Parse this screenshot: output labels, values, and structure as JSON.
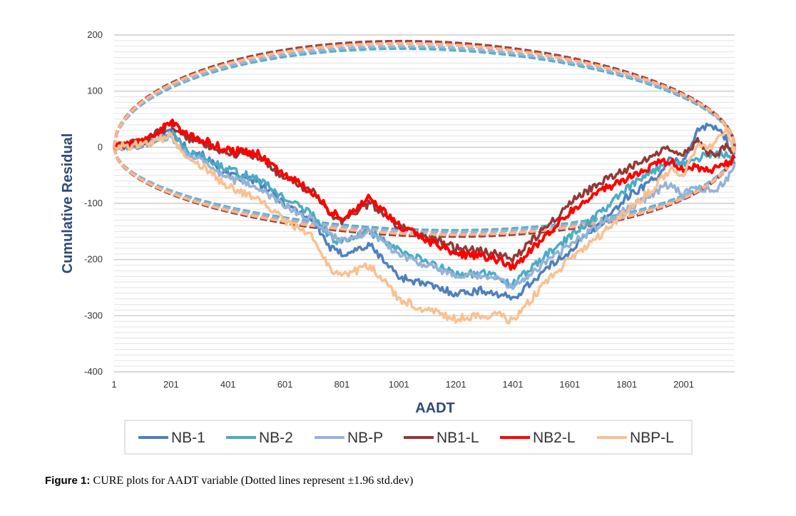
{
  "chart_data": {
    "type": "line",
    "xlabel": "AADT",
    "ylabel": "Cumulative Residual",
    "xlim": [
      1,
      2180
    ],
    "ylim": [
      -400,
      200
    ],
    "x_ticks": [
      1,
      201,
      401,
      601,
      801,
      1001,
      1201,
      1401,
      1601,
      1801,
      2001
    ],
    "y_ticks": [
      200,
      100,
      0,
      -100,
      -200,
      -300,
      -400
    ],
    "grid": true,
    "legend_position": "bottom",
    "series": [
      {
        "name": "NB-1",
        "color": "#4f7fbf",
        "points": [
          [
            1,
            0
          ],
          [
            100,
            5
          ],
          [
            200,
            30
          ],
          [
            260,
            -5
          ],
          [
            300,
            -10
          ],
          [
            400,
            -50
          ],
          [
            500,
            -60
          ],
          [
            600,
            -100
          ],
          [
            700,
            -130
          ],
          [
            760,
            -180
          ],
          [
            800,
            -190
          ],
          [
            900,
            -175
          ],
          [
            1000,
            -230
          ],
          [
            1100,
            -245
          ],
          [
            1200,
            -260
          ],
          [
            1300,
            -255
          ],
          [
            1350,
            -262
          ],
          [
            1400,
            -270
          ],
          [
            1500,
            -225
          ],
          [
            1600,
            -185
          ],
          [
            1700,
            -140
          ],
          [
            1800,
            -90
          ],
          [
            1900,
            -55
          ],
          [
            1950,
            -25
          ],
          [
            2000,
            -25
          ],
          [
            2050,
            30
          ],
          [
            2100,
            40
          ],
          [
            2150,
            15
          ],
          [
            2180,
            -20
          ]
        ]
      },
      {
        "name": "NB-2",
        "color": "#4bacc6",
        "points": [
          [
            1,
            0
          ],
          [
            100,
            5
          ],
          [
            200,
            25
          ],
          [
            260,
            -10
          ],
          [
            300,
            -15
          ],
          [
            400,
            -40
          ],
          [
            500,
            -55
          ],
          [
            600,
            -90
          ],
          [
            700,
            -120
          ],
          [
            760,
            -160
          ],
          [
            800,
            -170
          ],
          [
            900,
            -150
          ],
          [
            1000,
            -185
          ],
          [
            1100,
            -205
          ],
          [
            1200,
            -225
          ],
          [
            1300,
            -225
          ],
          [
            1350,
            -232
          ],
          [
            1400,
            -245
          ],
          [
            1500,
            -200
          ],
          [
            1600,
            -160
          ],
          [
            1700,
            -120
          ],
          [
            1800,
            -75
          ],
          [
            1900,
            -40
          ],
          [
            1950,
            -25
          ],
          [
            2000,
            -30
          ],
          [
            2050,
            -20
          ],
          [
            2100,
            -10
          ],
          [
            2150,
            -15
          ],
          [
            2180,
            -30
          ]
        ]
      },
      {
        "name": "NB-P",
        "color": "#95b3d7",
        "points": [
          [
            1,
            0
          ],
          [
            100,
            5
          ],
          [
            200,
            20
          ],
          [
            260,
            -15
          ],
          [
            300,
            -20
          ],
          [
            400,
            -55
          ],
          [
            500,
            -70
          ],
          [
            600,
            -105
          ],
          [
            700,
            -130
          ],
          [
            760,
            -155
          ],
          [
            800,
            -165
          ],
          [
            900,
            -150
          ],
          [
            1000,
            -190
          ],
          [
            1100,
            -210
          ],
          [
            1200,
            -230
          ],
          [
            1300,
            -230
          ],
          [
            1350,
            -235
          ],
          [
            1400,
            -250
          ],
          [
            1500,
            -210
          ],
          [
            1600,
            -175
          ],
          [
            1700,
            -140
          ],
          [
            1800,
            -110
          ],
          [
            1900,
            -80
          ],
          [
            1950,
            -65
          ],
          [
            2000,
            -85
          ],
          [
            2050,
            -70
          ],
          [
            2100,
            -80
          ],
          [
            2150,
            -60
          ],
          [
            2180,
            -30
          ]
        ]
      },
      {
        "name": "NB1-L",
        "color": "#953735",
        "points": [
          [
            1,
            0
          ],
          [
            100,
            10
          ],
          [
            200,
            40
          ],
          [
            260,
            15
          ],
          [
            300,
            10
          ],
          [
            400,
            -10
          ],
          [
            500,
            -15
          ],
          [
            600,
            -55
          ],
          [
            700,
            -80
          ],
          [
            760,
            -120
          ],
          [
            800,
            -130
          ],
          [
            900,
            -100
          ],
          [
            1000,
            -140
          ],
          [
            1100,
            -160
          ],
          [
            1200,
            -180
          ],
          [
            1300,
            -185
          ],
          [
            1350,
            -190
          ],
          [
            1400,
            -200
          ],
          [
            1500,
            -150
          ],
          [
            1600,
            -100
          ],
          [
            1700,
            -65
          ],
          [
            1800,
            -40
          ],
          [
            1900,
            -10
          ],
          [
            1950,
            0
          ],
          [
            2000,
            -10
          ],
          [
            2050,
            10
          ],
          [
            2100,
            -15
          ],
          [
            2150,
            0
          ],
          [
            2180,
            -10
          ]
        ]
      },
      {
        "name": "NB2-L",
        "color": "#ff0000",
        "points": [
          [
            1,
            0
          ],
          [
            100,
            10
          ],
          [
            200,
            45
          ],
          [
            260,
            20
          ],
          [
            300,
            15
          ],
          [
            400,
            -5
          ],
          [
            500,
            -10
          ],
          [
            600,
            -50
          ],
          [
            700,
            -80
          ],
          [
            760,
            -115
          ],
          [
            800,
            -125
          ],
          [
            900,
            -90
          ],
          [
            1000,
            -140
          ],
          [
            1100,
            -165
          ],
          [
            1200,
            -190
          ],
          [
            1300,
            -195
          ],
          [
            1350,
            -200
          ],
          [
            1400,
            -215
          ],
          [
            1500,
            -165
          ],
          [
            1600,
            -115
          ],
          [
            1700,
            -80
          ],
          [
            1800,
            -55
          ],
          [
            1900,
            -30
          ],
          [
            1950,
            -25
          ],
          [
            2000,
            -40
          ],
          [
            2050,
            -35
          ],
          [
            2100,
            -40
          ],
          [
            2150,
            -30
          ],
          [
            2180,
            -20
          ]
        ]
      },
      {
        "name": "NBP-L",
        "color": "#fac090",
        "points": [
          [
            1,
            0
          ],
          [
            100,
            5
          ],
          [
            200,
            20
          ],
          [
            260,
            -25
          ],
          [
            300,
            -30
          ],
          [
            400,
            -70
          ],
          [
            500,
            -90
          ],
          [
            600,
            -130
          ],
          [
            700,
            -160
          ],
          [
            760,
            -220
          ],
          [
            800,
            -230
          ],
          [
            900,
            -210
          ],
          [
            1000,
            -270
          ],
          [
            1100,
            -290
          ],
          [
            1200,
            -305
          ],
          [
            1300,
            -300
          ],
          [
            1350,
            -298
          ],
          [
            1400,
            -310
          ],
          [
            1500,
            -250
          ],
          [
            1600,
            -200
          ],
          [
            1700,
            -160
          ],
          [
            1800,
            -115
          ],
          [
            1900,
            -70
          ],
          [
            1950,
            -40
          ],
          [
            2000,
            -50
          ],
          [
            2050,
            5
          ],
          [
            2100,
            0
          ],
          [
            2150,
            30
          ],
          [
            2180,
            -10
          ]
        ]
      }
    ],
    "bounds": [
      {
        "color": "#4bacc6",
        "scale": 0.95
      },
      {
        "color": "#95b3d7",
        "scale": 0.97
      },
      {
        "color": "#953735",
        "scale": 1.02
      },
      {
        "color": "#ff0000",
        "scale": 1.0
      },
      {
        "color": "#fac090",
        "scale": 1.0
      }
    ]
  },
  "legend": {
    "items": [
      {
        "label": "NB-1",
        "color": "#4f7fbf"
      },
      {
        "label": "NB-2",
        "color": "#4bacc6"
      },
      {
        "label": "NB-P",
        "color": "#95b3d7"
      },
      {
        "label": "NB1-L",
        "color": "#953735"
      },
      {
        "label": "NB2-L",
        "color": "#ff0000"
      },
      {
        "label": "NBP-L",
        "color": "#fac090"
      }
    ]
  },
  "caption": {
    "label": "Figure 1:",
    "text": "CURE plots for AADT variable (Dotted lines represent ±1.96 std.dev)"
  }
}
